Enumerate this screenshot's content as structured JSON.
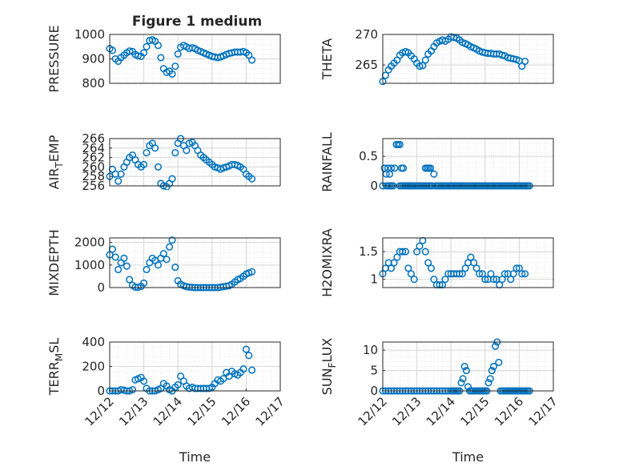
{
  "figure": {
    "title": "Figure 1 medium",
    "marker_color": "#0072BD"
  },
  "chart_data": [
    {
      "type": "scatter",
      "ylabel": "PRESSURE",
      "ylim": [
        800,
        1000
      ],
      "yticks": [
        800,
        900,
        1000
      ],
      "xlim": [
        0,
        5
      ],
      "xticks": [],
      "x": [
        0.0,
        0.08,
        0.17,
        0.25,
        0.33,
        0.42,
        0.5,
        0.58,
        0.67,
        0.75,
        0.83,
        0.92,
        1.0,
        1.08,
        1.17,
        1.25,
        1.33,
        1.42,
        1.5,
        1.58,
        1.67,
        1.75,
        1.83,
        1.92,
        2.0,
        2.08,
        2.17,
        2.25,
        2.33,
        2.42,
        2.5,
        2.58,
        2.67,
        2.75,
        2.83,
        2.92,
        3.0,
        3.08,
        3.17,
        3.25,
        3.33,
        3.42,
        3.5,
        3.58,
        3.67,
        3.75,
        3.83,
        3.92,
        4.0,
        4.08,
        4.17
      ],
      "y": [
        942,
        935,
        900,
        890,
        905,
        915,
        925,
        932,
        930,
        918,
        912,
        910,
        925,
        950,
        975,
        978,
        972,
        955,
        905,
        860,
        845,
        850,
        838,
        870,
        920,
        948,
        955,
        950,
        942,
        946,
        942,
        935,
        930,
        925,
        920,
        915,
        910,
        908,
        905,
        908,
        912,
        918,
        922,
        925,
        928,
        928,
        928,
        930,
        925,
        915,
        895
      ]
    },
    {
      "type": "scatter",
      "ylabel": "THETA",
      "ylim": [
        262,
        270
      ],
      "yticks": [
        265,
        270
      ],
      "xlim": [
        0,
        5
      ],
      "xticks": [],
      "x": [
        0.0,
        0.08,
        0.17,
        0.25,
        0.33,
        0.42,
        0.5,
        0.58,
        0.67,
        0.75,
        0.83,
        0.92,
        1.0,
        1.08,
        1.17,
        1.25,
        1.33,
        1.42,
        1.5,
        1.58,
        1.67,
        1.75,
        1.83,
        1.92,
        2.0,
        2.08,
        2.17,
        2.25,
        2.33,
        2.42,
        2.5,
        2.58,
        2.67,
        2.75,
        2.83,
        2.92,
        3.0,
        3.08,
        3.17,
        3.25,
        3.33,
        3.42,
        3.5,
        3.58,
        3.67,
        3.75,
        3.83,
        3.92,
        4.0,
        4.08,
        4.17
      ],
      "y": [
        262.3,
        263.3,
        264.2,
        264.8,
        265.3,
        265.8,
        266.6,
        267.0,
        267.2,
        267.0,
        266.5,
        266.0,
        265.3,
        264.8,
        264.9,
        265.8,
        266.8,
        267.3,
        268.0,
        268.6,
        268.9,
        269.1,
        268.9,
        269.2,
        269.6,
        269.5,
        269.4,
        269.1,
        268.7,
        268.5,
        268.3,
        268.0,
        267.8,
        267.6,
        267.3,
        267.1,
        267.0,
        266.9,
        266.9,
        266.8,
        266.8,
        266.8,
        266.6,
        266.5,
        266.2,
        266.1,
        266.0,
        265.9,
        265.7,
        264.8,
        265.6
      ]
    },
    {
      "type": "scatter",
      "ylabel": "AIR_TEMP",
      "ylim": [
        256,
        266
      ],
      "yticks": [
        256,
        258,
        260,
        262,
        264,
        266
      ],
      "xlim": [
        0,
        5
      ],
      "xticks": [],
      "x": [
        0.0,
        0.08,
        0.17,
        0.25,
        0.33,
        0.42,
        0.5,
        0.58,
        0.67,
        0.75,
        0.83,
        0.92,
        1.0,
        1.08,
        1.17,
        1.25,
        1.33,
        1.42,
        1.5,
        1.58,
        1.67,
        1.75,
        1.83,
        1.92,
        2.0,
        2.08,
        2.17,
        2.25,
        2.33,
        2.42,
        2.5,
        2.58,
        2.67,
        2.75,
        2.83,
        2.92,
        3.0,
        3.08,
        3.17,
        3.25,
        3.33,
        3.42,
        3.5,
        3.58,
        3.67,
        3.75,
        3.83,
        3.92,
        4.0,
        4.08,
        4.17
      ],
      "y": [
        258.0,
        259.5,
        258.5,
        257.0,
        258.5,
        260.0,
        261.0,
        262.0,
        262.5,
        261.5,
        260.5,
        260.0,
        260.5,
        263.0,
        264.5,
        265.0,
        264.0,
        260.0,
        256.5,
        256.0,
        255.8,
        256.5,
        257.5,
        263.0,
        265.0,
        266.0,
        264.5,
        263.5,
        265.0,
        265.2,
        264.5,
        263.5,
        262.5,
        262.0,
        261.5,
        261.0,
        260.5,
        260.0,
        259.8,
        259.5,
        259.8,
        260.0,
        260.2,
        260.5,
        260.5,
        260.3,
        260.0,
        259.5,
        258.5,
        258.0,
        257.5
      ]
    },
    {
      "type": "scatter",
      "ylabel": "RAINFALL",
      "ylim": [
        0,
        0.8
      ],
      "yticks": [
        0,
        0.5
      ],
      "xlim": [
        0,
        5
      ],
      "xticks": [],
      "x": [
        0.0,
        0.05,
        0.1,
        0.15,
        0.2,
        0.25,
        0.3,
        0.35,
        0.4,
        0.45,
        0.5,
        0.55,
        0.6,
        0.65,
        0.7,
        0.75,
        0.8,
        0.85,
        0.9,
        0.95,
        1.0,
        1.05,
        1.1,
        1.15,
        1.2,
        1.25,
        1.3,
        1.35,
        1.4,
        1.45,
        1.5,
        1.55,
        1.6,
        1.65,
        1.7,
        1.75,
        1.8,
        1.85,
        1.9,
        1.95,
        2.0,
        2.05,
        2.1,
        2.15,
        2.2,
        2.25,
        2.3,
        2.35,
        2.4,
        2.45,
        2.5,
        2.55,
        2.6,
        2.65,
        2.7,
        2.75,
        2.8,
        2.85,
        2.9,
        2.95,
        3.0,
        3.05,
        3.1,
        3.15,
        3.2,
        3.25,
        3.3,
        3.35,
        3.4,
        3.45,
        3.5,
        3.55,
        3.6,
        3.65,
        3.7,
        3.75,
        3.8,
        3.85,
        3.9,
        3.95,
        4.0,
        4.05,
        4.1,
        4.15,
        4.2,
        4.25,
        4.3,
        0.5,
        0.55,
        0.6,
        0.65,
        0.7,
        0.75,
        0.8,
        0.85,
        1.25,
        1.3,
        1.35,
        1.4,
        0.1,
        0.15,
        0.2,
        0.25,
        0.3
      ],
      "y": [
        0,
        0.3,
        0.2,
        0.3,
        0.2,
        0.3,
        0,
        0.3,
        0.7,
        0.7,
        0.7,
        0.3,
        0.3,
        0,
        0,
        0,
        0,
        0,
        0,
        0,
        0,
        0,
        0,
        0,
        0,
        0.3,
        0.3,
        0.3,
        0.3,
        0,
        0.2,
        0,
        0,
        0,
        0,
        0,
        0,
        0,
        0,
        0,
        0,
        0,
        0,
        0,
        0,
        0,
        0,
        0,
        0,
        0,
        0,
        0,
        0,
        0,
        0,
        0,
        0,
        0,
        0,
        0,
        0,
        0,
        0,
        0,
        0,
        0,
        0,
        0,
        0,
        0,
        0,
        0,
        0,
        0,
        0,
        0,
        0,
        0,
        0,
        0,
        0,
        0,
        0,
        0,
        0,
        0,
        0,
        0,
        0,
        0,
        0,
        0,
        0,
        0,
        0,
        0,
        0,
        0,
        0,
        0,
        0,
        0,
        0,
        0
      ]
    },
    {
      "type": "scatter",
      "ylabel": "MIXDEPTH",
      "ylim": [
        0,
        2200
      ],
      "yticks": [
        0,
        1000,
        2000
      ],
      "xlim": [
        0,
        5
      ],
      "xticks": [],
      "x": [
        0.0,
        0.08,
        0.17,
        0.25,
        0.33,
        0.42,
        0.5,
        0.58,
        0.67,
        0.75,
        0.83,
        0.92,
        1.0,
        1.08,
        1.17,
        1.25,
        1.33,
        1.42,
        1.5,
        1.58,
        1.67,
        1.75,
        1.83,
        1.92,
        2.0,
        2.08,
        2.17,
        2.25,
        2.33,
        2.42,
        2.5,
        2.58,
        2.67,
        2.75,
        2.83,
        2.92,
        3.0,
        3.08,
        3.17,
        3.25,
        3.33,
        3.42,
        3.5,
        3.58,
        3.67,
        3.75,
        3.83,
        3.92,
        4.0,
        4.08,
        4.17
      ],
      "y": [
        1450,
        1700,
        1350,
        800,
        1100,
        1300,
        950,
        350,
        100,
        20,
        10,
        50,
        200,
        800,
        1100,
        1300,
        1200,
        1000,
        1300,
        1500,
        1250,
        1800,
        2100,
        900,
        300,
        150,
        80,
        40,
        20,
        10,
        0,
        0,
        0,
        0,
        0,
        0,
        0,
        0,
        0,
        20,
        40,
        60,
        80,
        150,
        250,
        350,
        400,
        500,
        600,
        650,
        700
      ]
    },
    {
      "type": "scatter",
      "ylabel": "H2OMIXRA",
      "ylim": [
        0.85,
        1.75
      ],
      "yticks": [
        1,
        1.5
      ],
      "xlim": [
        0,
        5
      ],
      "xticks": [],
      "x": [
        0.0,
        0.08,
        0.17,
        0.25,
        0.33,
        0.42,
        0.5,
        0.58,
        0.67,
        0.75,
        0.83,
        0.92,
        1.0,
        1.08,
        1.17,
        1.25,
        1.33,
        1.42,
        1.5,
        1.58,
        1.67,
        1.75,
        1.83,
        1.92,
        2.0,
        2.08,
        2.17,
        2.25,
        2.33,
        2.42,
        2.5,
        2.58,
        2.67,
        2.75,
        2.83,
        2.92,
        3.0,
        3.08,
        3.17,
        3.25,
        3.33,
        3.42,
        3.5,
        3.58,
        3.67,
        3.75,
        3.83,
        3.92,
        4.0,
        4.08,
        4.17
      ],
      "y": [
        1.1,
        1.2,
        1.3,
        1.2,
        1.3,
        1.4,
        1.5,
        1.5,
        1.5,
        1.2,
        1.1,
        1.0,
        1.5,
        1.6,
        1.7,
        1.5,
        1.3,
        1.2,
        1.0,
        0.9,
        0.9,
        0.9,
        1.0,
        1.1,
        1.1,
        1.1,
        1.1,
        1.1,
        1.1,
        1.2,
        1.3,
        1.4,
        1.3,
        1.2,
        1.1,
        1.1,
        1.0,
        1.0,
        1.1,
        1.0,
        1.0,
        0.9,
        1.0,
        1.1,
        1.1,
        1.0,
        1.1,
        1.2,
        1.2,
        1.1,
        1.1
      ]
    },
    {
      "type": "scatter",
      "ylabel": "TERR_MSL",
      "ylim": [
        0,
        400
      ],
      "yticks": [
        0,
        200,
        400
      ],
      "xlim": [
        0,
        5
      ],
      "xticklabels": [
        "12/12",
        "12/13",
        "12/14",
        "12/15",
        "12/16",
        "12/17"
      ],
      "xticks": [
        0,
        1,
        2,
        3,
        4,
        5
      ],
      "xlabel": "Time",
      "x": [
        0.0,
        0.08,
        0.17,
        0.25,
        0.33,
        0.42,
        0.5,
        0.58,
        0.67,
        0.75,
        0.83,
        0.92,
        1.0,
        1.08,
        1.17,
        1.25,
        1.33,
        1.42,
        1.5,
        1.58,
        1.67,
        1.75,
        1.83,
        1.92,
        2.0,
        2.08,
        2.17,
        2.25,
        2.33,
        2.42,
        2.5,
        2.58,
        2.67,
        2.75,
        2.83,
        2.92,
        3.0,
        3.08,
        3.17,
        3.25,
        3.33,
        3.42,
        3.5,
        3.58,
        3.67,
        3.75,
        3.83,
        3.92,
        4.0,
        4.08,
        4.17
      ],
      "y": [
        0,
        0,
        0,
        0,
        10,
        5,
        0,
        0,
        10,
        90,
        100,
        110,
        80,
        20,
        0,
        0,
        0,
        10,
        20,
        60,
        40,
        10,
        0,
        30,
        50,
        120,
        80,
        40,
        20,
        30,
        20,
        20,
        20,
        20,
        20,
        20,
        30,
        60,
        90,
        80,
        100,
        150,
        120,
        160,
        140,
        130,
        150,
        180,
        340,
        290,
        170
      ]
    },
    {
      "type": "scatter",
      "ylabel": "SUN_FLUX",
      "ylim": [
        0,
        12
      ],
      "yticks": [
        0,
        5,
        10
      ],
      "xlim": [
        0,
        5
      ],
      "xticklabels": [
        "12/12",
        "12/13",
        "12/14",
        "12/15",
        "12/16",
        "12/17"
      ],
      "xticks": [
        0,
        1,
        2,
        3,
        4,
        5
      ],
      "xlabel": "Time",
      "x": [
        0.0,
        0.08,
        0.17,
        0.25,
        0.33,
        0.42,
        0.5,
        0.58,
        0.67,
        0.75,
        0.83,
        0.92,
        1.0,
        1.08,
        1.17,
        1.25,
        1.33,
        1.42,
        1.5,
        1.58,
        1.67,
        1.75,
        1.83,
        1.92,
        2.0,
        2.05,
        2.1,
        2.15,
        2.2,
        2.25,
        2.3,
        2.35,
        2.4,
        2.45,
        2.5,
        2.55,
        2.6,
        2.65,
        2.7,
        2.75,
        2.8,
        2.85,
        2.9,
        2.95,
        3.0,
        3.05,
        3.1,
        3.15,
        3.2,
        3.25,
        3.3,
        3.35,
        3.4,
        3.45,
        3.5,
        3.55,
        3.6,
        3.65,
        3.7,
        3.75,
        3.8,
        3.85,
        3.9,
        3.95,
        4.0,
        4.05,
        4.1,
        4.15,
        4.2,
        4.25,
        4.3
      ],
      "y": [
        0,
        0,
        0,
        0,
        0,
        0,
        0,
        0,
        0,
        0,
        0,
        0,
        0,
        0,
        0,
        0,
        0,
        0,
        0,
        0,
        0,
        0,
        0,
        0,
        0,
        0,
        0,
        0,
        0,
        0,
        2,
        3,
        6,
        5,
        1,
        0,
        0,
        0,
        0,
        0,
        0,
        0,
        0,
        0,
        0,
        0,
        2,
        3,
        5,
        6,
        11,
        12,
        7,
        0,
        0,
        0,
        0,
        0,
        0,
        0,
        0,
        0,
        0,
        0,
        0,
        0,
        0,
        0,
        0,
        0,
        0
      ]
    }
  ]
}
